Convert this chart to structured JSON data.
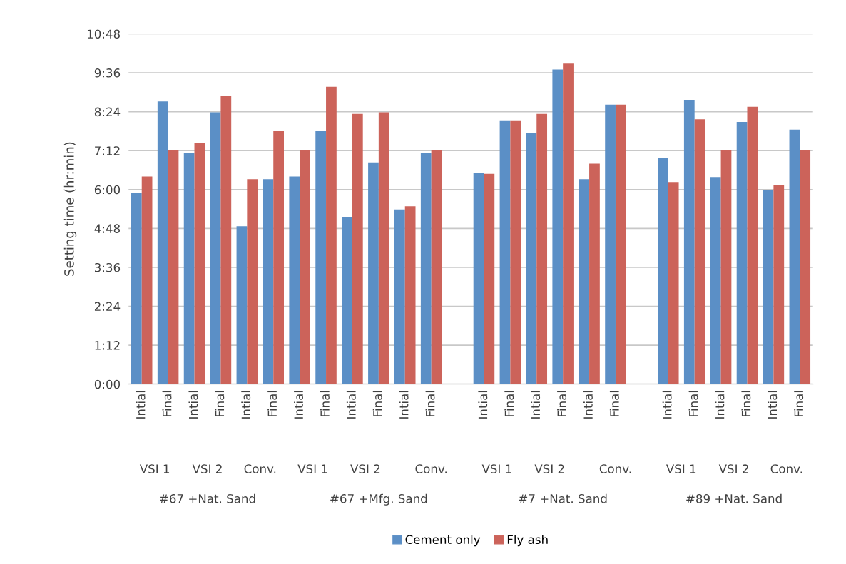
{
  "chart_data": {
    "type": "bar",
    "ylabel": "Setting time (hr:min)",
    "categories": [
      "Intial",
      "Final",
      "Intial",
      "Final",
      "Intial",
      "Final",
      "Intial",
      "Final",
      "Intial",
      "Final",
      "Intial",
      "Final",
      null,
      "Intial",
      "Final",
      "Intial",
      "Final",
      "Intial",
      "Final",
      null,
      "Intial",
      "Final",
      "Intial",
      "Final",
      "Intial",
      "Final"
    ],
    "series": [
      {
        "name": "Cement only",
        "color": "#5b8fc6",
        "values": [
          353,
          523,
          428,
          503,
          292,
          379,
          384,
          468,
          309,
          410,
          323,
          428,
          0,
          390,
          488,
          465,
          582,
          379,
          517,
          0,
          418,
          526,
          383,
          485,
          359,
          471
        ]
      },
      {
        "name": "Fly ash",
        "color": "#cc635a",
        "values": [
          384,
          433,
          446,
          533,
          379,
          468,
          433,
          550,
          500,
          503,
          329,
          433,
          0,
          389,
          488,
          500,
          593,
          408,
          517,
          0,
          374,
          490,
          433,
          513,
          369,
          433
        ]
      }
    ],
    "ylim": [
      0,
      648
    ],
    "yticks": [
      {
        "value": 0,
        "label": "0:00"
      },
      {
        "value": 72,
        "label": "1:12"
      },
      {
        "value": 144,
        "label": "2:24"
      },
      {
        "value": 216,
        "label": "3:36"
      },
      {
        "value": 288,
        "label": "4:48"
      },
      {
        "value": 360,
        "label": "6:00"
      },
      {
        "value": 432,
        "label": "7:12"
      },
      {
        "value": 504,
        "label": "8:24"
      },
      {
        "value": 576,
        "label": "9:36"
      },
      {
        "value": 648,
        "label": "10:48"
      }
    ],
    "grid": "y",
    "legend": "bottom",
    "annotations": [
      "VSI 1",
      "VSI 2",
      "Conv.",
      "VSI 1",
      "VSI 2",
      "Conv.",
      "VSI 1",
      "VSI 2",
      "Conv.",
      "VSI 1",
      "VSI 2",
      "Conv.",
      "#67 +Nat. Sand",
      "#67 +Mfg. Sand",
      "#7 +Nat. Sand",
      "#89 +Nat. Sand"
    ]
  }
}
